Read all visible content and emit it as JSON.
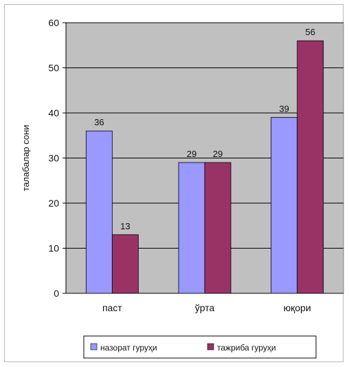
{
  "chart_data": {
    "type": "bar",
    "categories": [
      "паст",
      "ўрта",
      "юқори"
    ],
    "series": [
      {
        "name": "назорат гуруҳи",
        "values": [
          36,
          29,
          39
        ],
        "color": "#9999ff"
      },
      {
        "name": "тажриба гуруҳи",
        "values": [
          13,
          29,
          56
        ],
        "color": "#993366"
      }
    ],
    "ylabel": "талабалар сони",
    "xlabel": "",
    "ylim": [
      0,
      60
    ],
    "yticks": [
      0,
      10,
      20,
      30,
      40,
      50,
      60
    ],
    "grid": true,
    "legend_position": "bottom",
    "plot_background": "#c0c0c0"
  }
}
